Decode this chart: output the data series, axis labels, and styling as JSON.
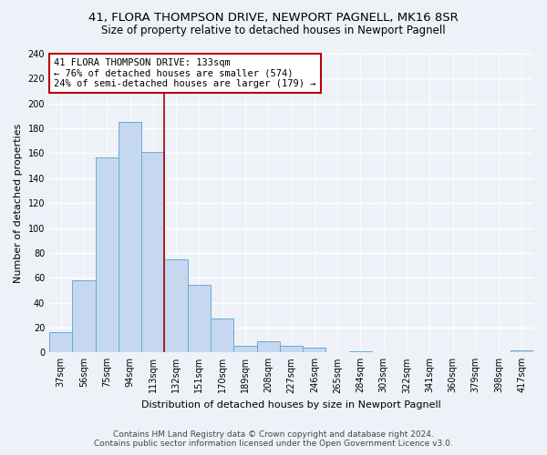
{
  "title": "41, FLORA THOMPSON DRIVE, NEWPORT PAGNELL, MK16 8SR",
  "subtitle": "Size of property relative to detached houses in Newport Pagnell",
  "xlabel": "Distribution of detached houses by size in Newport Pagnell",
  "ylabel": "Number of detached properties",
  "bar_labels": [
    "37sqm",
    "56sqm",
    "75sqm",
    "94sqm",
    "113sqm",
    "132sqm",
    "151sqm",
    "170sqm",
    "189sqm",
    "208sqm",
    "227sqm",
    "246sqm",
    "265sqm",
    "284sqm",
    "303sqm",
    "322sqm",
    "341sqm",
    "360sqm",
    "379sqm",
    "398sqm",
    "417sqm"
  ],
  "bar_values": [
    16,
    58,
    157,
    185,
    161,
    75,
    54,
    27,
    5,
    9,
    5,
    4,
    0,
    1,
    0,
    0,
    0,
    0,
    0,
    0,
    2
  ],
  "bar_color": "#c5d8f0",
  "bar_edge_color": "#6aaad4",
  "vline_x": 4.5,
  "vline_color": "#aa0000",
  "annotation_text": "41 FLORA THOMPSON DRIVE: 133sqm\n← 76% of detached houses are smaller (574)\n24% of semi-detached houses are larger (179) →",
  "annotation_box_color": "#ffffff",
  "annotation_box_edge": "#bb0000",
  "ylim": [
    0,
    240
  ],
  "yticks": [
    0,
    20,
    40,
    60,
    80,
    100,
    120,
    140,
    160,
    180,
    200,
    220,
    240
  ],
  "footer_line1": "Contains HM Land Registry data © Crown copyright and database right 2024.",
  "footer_line2": "Contains public sector information licensed under the Open Government Licence v3.0.",
  "bg_color": "#eef2f8",
  "grid_color": "#ffffff",
  "title_fontsize": 9.5,
  "subtitle_fontsize": 8.5,
  "xlabel_fontsize": 8,
  "ylabel_fontsize": 8,
  "tick_fontsize": 7,
  "annotation_fontsize": 7.5,
  "footer_fontsize": 6.5
}
